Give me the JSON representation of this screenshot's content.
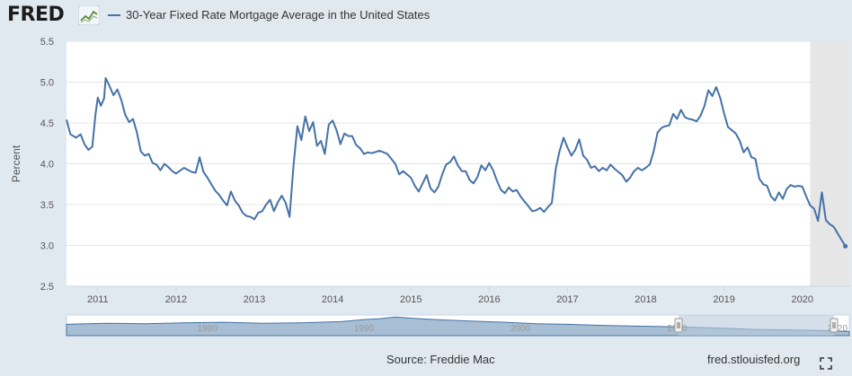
{
  "header": {
    "logo_text": "FRED",
    "series_title": "30-Year Fixed Rate Mortgage Average in the United States"
  },
  "footer": {
    "source": "Source: Freddie Mac",
    "url": "fred.stlouisfed.org"
  },
  "navigator": {
    "tick_labels": [
      "1980",
      "1990",
      "2000",
      "2010",
      "2020"
    ]
  },
  "colors": {
    "line": "#4572a7",
    "recession_shade": "#e6e6e6",
    "navigator_fill": "#a8bed4",
    "navigator_selection": "#b7c9dc"
  },
  "icons": [
    "fred-logo-graph-icon",
    "fullscreen-icon"
  ],
  "chart_data": {
    "type": "line",
    "title": "30-Year Fixed Rate Mortgage Average in the United States",
    "ylabel": "Percent",
    "xlabel": "",
    "ylim": [
      2.5,
      5.5
    ],
    "xlim": [
      2010.6,
      2020.6
    ],
    "y_ticks": [
      "2.5",
      "3.0",
      "3.5",
      "4.0",
      "4.5",
      "5.0",
      "5.5"
    ],
    "x_ticks": [
      "2011",
      "2012",
      "2013",
      "2014",
      "2015",
      "2016",
      "2017",
      "2018",
      "2019",
      "2020"
    ],
    "grid": true,
    "shaded_region": {
      "label": "recession",
      "x_start": 2020.1,
      "x_end": 2020.6
    },
    "series": [
      {
        "name": "30-Year Fixed Rate Mortgage Average in the United States",
        "x": [
          2010.6,
          2010.65,
          2010.72,
          2010.78,
          2010.83,
          2010.88,
          2010.93,
          2010.97,
          2011.0,
          2011.04,
          2011.08,
          2011.1,
          2011.15,
          2011.2,
          2011.25,
          2011.3,
          2011.35,
          2011.4,
          2011.45,
          2011.5,
          2011.55,
          2011.6,
          2011.65,
          2011.7,
          2011.75,
          2011.8,
          2011.85,
          2011.9,
          2011.95,
          2012.0,
          2012.1,
          2012.2,
          2012.25,
          2012.3,
          2012.35,
          2012.4,
          2012.45,
          2012.5,
          2012.55,
          2012.6,
          2012.65,
          2012.7,
          2012.75,
          2012.8,
          2012.85,
          2012.9,
          2012.95,
          2013.0,
          2013.05,
          2013.1,
          2013.15,
          2013.2,
          2013.25,
          2013.3,
          2013.35,
          2013.4,
          2013.45,
          2013.5,
          2013.55,
          2013.6,
          2013.65,
          2013.7,
          2013.75,
          2013.8,
          2013.85,
          2013.9,
          2013.95,
          2014.0,
          2014.05,
          2014.1,
          2014.15,
          2014.2,
          2014.25,
          2014.3,
          2014.35,
          2014.4,
          2014.45,
          2014.5,
          2014.6,
          2014.7,
          2014.8,
          2014.85,
          2014.9,
          2015.0,
          2015.05,
          2015.1,
          2015.15,
          2015.2,
          2015.25,
          2015.3,
          2015.35,
          2015.4,
          2015.45,
          2015.5,
          2015.55,
          2015.6,
          2015.65,
          2015.7,
          2015.75,
          2015.8,
          2015.85,
          2015.9,
          2015.95,
          2016.0,
          2016.05,
          2016.1,
          2016.15,
          2016.2,
          2016.25,
          2016.3,
          2016.35,
          2016.4,
          2016.45,
          2016.5,
          2016.55,
          2016.6,
          2016.65,
          2016.7,
          2016.75,
          2016.8,
          2016.85,
          2016.9,
          2016.95,
          2017.0,
          2017.05,
          2017.1,
          2017.15,
          2017.2,
          2017.25,
          2017.3,
          2017.35,
          2017.4,
          2017.45,
          2017.5,
          2017.55,
          2017.6,
          2017.65,
          2017.7,
          2017.75,
          2017.8,
          2017.85,
          2017.9,
          2017.95,
          2018.0,
          2018.05,
          2018.1,
          2018.15,
          2018.2,
          2018.25,
          2018.3,
          2018.35,
          2018.4,
          2018.45,
          2018.5,
          2018.55,
          2018.6,
          2018.65,
          2018.7,
          2018.75,
          2018.8,
          2018.85,
          2018.9,
          2018.95,
          2019.0,
          2019.05,
          2019.1,
          2019.15,
          2019.2,
          2019.25,
          2019.3,
          2019.35,
          2019.4,
          2019.45,
          2019.5,
          2019.55,
          2019.6,
          2019.65,
          2019.7,
          2019.75,
          2019.8,
          2019.85,
          2019.9,
          2019.95,
          2020.0,
          2020.05,
          2020.1,
          2020.15,
          2020.2,
          2020.25,
          2020.3,
          2020.35,
          2020.4,
          2020.45,
          2020.5,
          2020.55
        ],
        "values": [
          4.54,
          4.36,
          4.32,
          4.36,
          4.24,
          4.17,
          4.21,
          4.6,
          4.81,
          4.71,
          4.8,
          5.05,
          4.95,
          4.84,
          4.91,
          4.78,
          4.6,
          4.51,
          4.55,
          4.38,
          4.15,
          4.1,
          4.12,
          4.01,
          3.99,
          3.92,
          4.0,
          3.96,
          3.91,
          3.88,
          3.95,
          3.9,
          3.89,
          4.08,
          3.9,
          3.83,
          3.75,
          3.67,
          3.62,
          3.55,
          3.49,
          3.66,
          3.55,
          3.49,
          3.4,
          3.36,
          3.35,
          3.32,
          3.4,
          3.42,
          3.5,
          3.56,
          3.42,
          3.53,
          3.61,
          3.52,
          3.35,
          3.98,
          4.46,
          4.29,
          4.58,
          4.4,
          4.51,
          4.22,
          4.28,
          4.12,
          4.48,
          4.53,
          4.41,
          4.24,
          4.37,
          4.34,
          4.34,
          4.23,
          4.19,
          4.12,
          4.14,
          4.13,
          4.16,
          4.12,
          4.0,
          3.87,
          3.91,
          3.83,
          3.73,
          3.66,
          3.76,
          3.86,
          3.7,
          3.65,
          3.72,
          3.87,
          3.99,
          4.02,
          4.09,
          3.98,
          3.91,
          3.91,
          3.8,
          3.76,
          3.84,
          3.98,
          3.92,
          4.01,
          3.92,
          3.79,
          3.68,
          3.64,
          3.71,
          3.66,
          3.68,
          3.6,
          3.54,
          3.48,
          3.42,
          3.43,
          3.46,
          3.41,
          3.47,
          3.52,
          3.94,
          4.16,
          4.32,
          4.2,
          4.1,
          4.17,
          4.3,
          4.1,
          4.05,
          3.95,
          3.97,
          3.91,
          3.95,
          3.92,
          3.99,
          3.94,
          3.9,
          3.86,
          3.78,
          3.83,
          3.91,
          3.95,
          3.92,
          3.95,
          3.99,
          4.15,
          4.38,
          4.44,
          4.46,
          4.47,
          4.61,
          4.55,
          4.66,
          4.57,
          4.55,
          4.54,
          4.52,
          4.59,
          4.71,
          4.9,
          4.83,
          4.94,
          4.81,
          4.62,
          4.45,
          4.41,
          4.37,
          4.28,
          4.14,
          4.2,
          4.08,
          4.06,
          3.82,
          3.75,
          3.73,
          3.6,
          3.55,
          3.65,
          3.57,
          3.69,
          3.74,
          3.72,
          3.73,
          3.72,
          3.6,
          3.49,
          3.45,
          3.3,
          3.65,
          3.31,
          3.26,
          3.23,
          3.15,
          3.07,
          2.99
        ]
      }
    ]
  }
}
